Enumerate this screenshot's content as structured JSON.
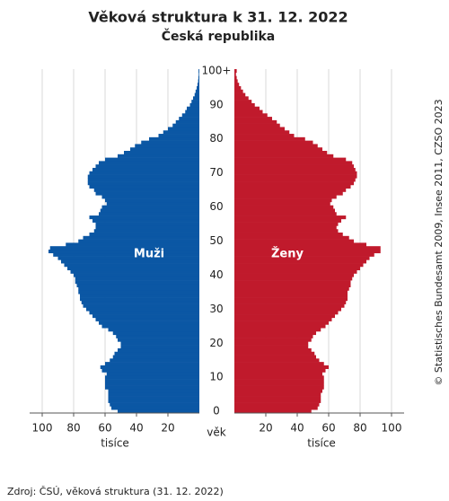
{
  "chart_data": {
    "type": "pyramid",
    "title": "Věková struktura k 31. 12. 2022",
    "subtitle": "Česká republika",
    "categories": [
      "0",
      null,
      null,
      null,
      null,
      null,
      null,
      null,
      null,
      null,
      "10",
      null,
      null,
      null,
      null,
      null,
      null,
      null,
      null,
      null,
      "20",
      null,
      null,
      null,
      null,
      null,
      null,
      null,
      null,
      null,
      "30",
      null,
      null,
      null,
      null,
      null,
      null,
      null,
      null,
      null,
      "40",
      null,
      null,
      null,
      null,
      null,
      null,
      null,
      null,
      null,
      "50",
      null,
      null,
      null,
      null,
      null,
      null,
      null,
      null,
      null,
      "60",
      null,
      null,
      null,
      null,
      null,
      null,
      null,
      null,
      null,
      "70",
      null,
      null,
      null,
      null,
      null,
      null,
      null,
      null,
      null,
      "80",
      null,
      null,
      null,
      null,
      null,
      null,
      null,
      null,
      null,
      "90",
      null,
      null,
      null,
      null,
      null,
      null,
      null,
      null,
      null,
      "100+"
    ],
    "series": [
      {
        "name": "Muži",
        "color": "#0b57a4",
        "values": [
          52,
          56,
          57,
          58,
          58,
          58,
          58,
          60,
          60,
          60,
          60,
          59,
          62,
          63,
          60,
          57,
          55,
          54,
          52,
          50,
          50,
          52,
          53,
          55,
          58,
          62,
          64,
          66,
          68,
          70,
          72,
          74,
          75,
          76,
          76,
          77,
          77,
          78,
          79,
          79,
          80,
          82,
          84,
          86,
          88,
          90,
          93,
          96,
          95,
          85,
          77,
          74,
          70,
          67,
          66,
          66,
          68,
          70,
          64,
          63,
          62,
          59,
          60,
          62,
          66,
          67,
          70,
          71,
          71,
          71,
          70,
          68,
          66,
          64,
          60,
          52,
          48,
          44,
          41,
          37,
          32,
          26,
          23,
          20,
          17,
          15,
          13,
          11,
          9,
          8,
          6,
          5,
          4,
          3,
          2.4,
          1.7,
          1.2,
          0.8,
          0.6,
          0.4,
          0.5
        ]
      },
      {
        "name": "Ženy",
        "color": "#c01a2c",
        "values": [
          49,
          53,
          54,
          55,
          55,
          55,
          56,
          57,
          57,
          57,
          57,
          56,
          58,
          60,
          57,
          54,
          52,
          51,
          49,
          47,
          47,
          49,
          50,
          52,
          55,
          58,
          60,
          62,
          64,
          66,
          68,
          70,
          71,
          72,
          72,
          72,
          73,
          74,
          74,
          75,
          76,
          78,
          80,
          82,
          84,
          86,
          89,
          93,
          93,
          84,
          76,
          73,
          69,
          66,
          65,
          66,
          68,
          71,
          65,
          64,
          63,
          61,
          62,
          65,
          69,
          71,
          74,
          76,
          77,
          78,
          78,
          77,
          76,
          75,
          71,
          63,
          59,
          56,
          53,
          50,
          45,
          38,
          35,
          32,
          29,
          27,
          24,
          21,
          18,
          16,
          13,
          11,
          9,
          7,
          5.5,
          4.2,
          3,
          2.1,
          1.5,
          1,
          1.5
        ]
      }
    ],
    "xlim": [
      0,
      108
    ],
    "xticks": [
      20,
      40,
      60,
      80,
      100
    ],
    "x_label": "tisíce",
    "y_label": "věk",
    "grid": true
  },
  "copyright": "© Statistisches Bundesamt 2009, Insee 2011, CZSO 2023",
  "source": "Zdroj: ČSÚ, věková struktura (31. 12. 2022)"
}
